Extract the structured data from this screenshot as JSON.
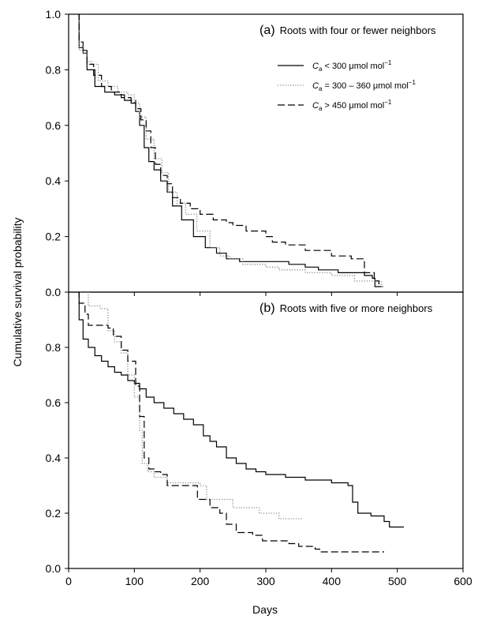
{
  "chart_data": {
    "type": "line",
    "xlabel": "Days",
    "ylabel": "Cumulative survival probability",
    "xlim": [
      0,
      600
    ],
    "ylim": [
      0,
      1.0
    ],
    "x_ticks": [
      "0",
      "100",
      "200",
      "300",
      "400",
      "500",
      "600"
    ],
    "y_ticks_top": [
      "0.0",
      "0.2",
      "0.4",
      "0.6",
      "0.8",
      "1.0"
    ],
    "y_ticks_bottom": [
      "0.0",
      "0.2",
      "0.4",
      "0.6",
      "0.8"
    ],
    "legend": {
      "placement": "top-right of panel (a)",
      "entries": [
        {
          "style": "solid",
          "prefix": "C",
          "sub": "a",
          "text": " < 300 μmol mol",
          "sup": "−1"
        },
        {
          "style": "dotted",
          "prefix": "C",
          "sub": "a",
          "text": " = 300 – 360 μmol mol",
          "sup": "−1"
        },
        {
          "style": "dashed",
          "prefix": "C",
          "sub": "a",
          "text": " > 450 μmol mol",
          "sup": "−1"
        }
      ]
    },
    "panels": [
      {
        "label": "(a)",
        "title": "Roots with four or fewer neighbors",
        "series": [
          {
            "style": "solid",
            "color": "#000000",
            "points": [
              [
                14,
                1.0
              ],
              [
                16,
                0.88
              ],
              [
                22,
                0.86
              ],
              [
                28,
                0.8
              ],
              [
                35,
                0.8
              ],
              [
                40,
                0.74
              ],
              [
                55,
                0.72
              ],
              [
                70,
                0.71
              ],
              [
                85,
                0.69
              ],
              [
                95,
                0.68
              ],
              [
                102,
                0.65
              ],
              [
                108,
                0.6
              ],
              [
                115,
                0.52
              ],
              [
                122,
                0.47
              ],
              [
                130,
                0.44
              ],
              [
                140,
                0.4
              ],
              [
                150,
                0.36
              ],
              [
                158,
                0.31
              ],
              [
                172,
                0.26
              ],
              [
                190,
                0.2
              ],
              [
                208,
                0.16
              ],
              [
                225,
                0.14
              ],
              [
                240,
                0.12
              ],
              [
                260,
                0.11
              ],
              [
                300,
                0.11
              ],
              [
                335,
                0.1
              ],
              [
                360,
                0.09
              ],
              [
                380,
                0.08
              ],
              [
                410,
                0.07
              ],
              [
                450,
                0.06
              ],
              [
                462,
                0.05
              ],
              [
                466,
                0.02
              ],
              [
                478,
                0.02
              ]
            ]
          },
          {
            "style": "dotted",
            "color": "#888888",
            "points": [
              [
                14,
                1.0
              ],
              [
                16,
                0.87
              ],
              [
                22,
                0.86
              ],
              [
                28,
                0.83
              ],
              [
                35,
                0.82
              ],
              [
                45,
                0.76
              ],
              [
                60,
                0.74
              ],
              [
                75,
                0.72
              ],
              [
                90,
                0.71
              ],
              [
                100,
                0.68
              ],
              [
                108,
                0.63
              ],
              [
                118,
                0.55
              ],
              [
                130,
                0.48
              ],
              [
                142,
                0.43
              ],
              [
                152,
                0.36
              ],
              [
                165,
                0.32
              ],
              [
                178,
                0.28
              ],
              [
                195,
                0.22
              ],
              [
                215,
                0.16
              ],
              [
                230,
                0.13
              ],
              [
                245,
                0.12
              ],
              [
                265,
                0.1
              ],
              [
                300,
                0.09
              ],
              [
                320,
                0.08
              ],
              [
                360,
                0.07
              ],
              [
                400,
                0.06
              ],
              [
                435,
                0.04
              ],
              [
                470,
                0.04
              ],
              [
                476,
                0.02
              ],
              [
                480,
                0.02
              ]
            ]
          },
          {
            "style": "dashed",
            "color": "#000000",
            "points": [
              [
                14,
                1.0
              ],
              [
                16,
                0.9
              ],
              [
                22,
                0.87
              ],
              [
                28,
                0.82
              ],
              [
                38,
                0.78
              ],
              [
                50,
                0.74
              ],
              [
                65,
                0.72
              ],
              [
                80,
                0.7
              ],
              [
                95,
                0.69
              ],
              [
                102,
                0.66
              ],
              [
                110,
                0.62
              ],
              [
                118,
                0.58
              ],
              [
                125,
                0.52
              ],
              [
                132,
                0.46
              ],
              [
                140,
                0.42
              ],
              [
                150,
                0.39
              ],
              [
                158,
                0.34
              ],
              [
                170,
                0.32
              ],
              [
                185,
                0.3
              ],
              [
                200,
                0.28
              ],
              [
                220,
                0.26
              ],
              [
                240,
                0.25
              ],
              [
                250,
                0.24
              ],
              [
                270,
                0.22
              ],
              [
                300,
                0.2
              ],
              [
                310,
                0.18
              ],
              [
                330,
                0.17
              ],
              [
                360,
                0.15
              ],
              [
                400,
                0.13
              ],
              [
                430,
                0.12
              ],
              [
                450,
                0.07
              ],
              [
                465,
                0.04
              ],
              [
                472,
                0.03
              ],
              [
                478,
                0.03
              ]
            ]
          }
        ]
      },
      {
        "label": "(b)",
        "title": "Roots with five or more neighbors",
        "series": [
          {
            "style": "solid",
            "color": "#000000",
            "points": [
              [
                14,
                1.0
              ],
              [
                16,
                0.9
              ],
              [
                22,
                0.83
              ],
              [
                30,
                0.8
              ],
              [
                40,
                0.77
              ],
              [
                50,
                0.75
              ],
              [
                60,
                0.73
              ],
              [
                70,
                0.71
              ],
              [
                80,
                0.7
              ],
              [
                90,
                0.68
              ],
              [
                100,
                0.67
              ],
              [
                108,
                0.65
              ],
              [
                118,
                0.62
              ],
              [
                130,
                0.6
              ],
              [
                145,
                0.58
              ],
              [
                160,
                0.56
              ],
              [
                175,
                0.54
              ],
              [
                190,
                0.52
              ],
              [
                205,
                0.48
              ],
              [
                215,
                0.46
              ],
              [
                225,
                0.44
              ],
              [
                240,
                0.4
              ],
              [
                255,
                0.38
              ],
              [
                270,
                0.36
              ],
              [
                285,
                0.35
              ],
              [
                300,
                0.34
              ],
              [
                330,
                0.33
              ],
              [
                360,
                0.32
              ],
              [
                400,
                0.31
              ],
              [
                425,
                0.3
              ],
              [
                432,
                0.24
              ],
              [
                440,
                0.2
              ],
              [
                460,
                0.19
              ],
              [
                480,
                0.17
              ],
              [
                488,
                0.15
              ],
              [
                510,
                0.15
              ]
            ]
          },
          {
            "style": "dotted",
            "color": "#888888",
            "points": [
              [
                14,
                1.0
              ],
              [
                20,
                1.0
              ],
              [
                30,
                0.95
              ],
              [
                48,
                0.94
              ],
              [
                60,
                0.86
              ],
              [
                70,
                0.82
              ],
              [
                80,
                0.78
              ],
              [
                90,
                0.7
              ],
              [
                100,
                0.62
              ],
              [
                108,
                0.5
              ],
              [
                112,
                0.38
              ],
              [
                120,
                0.35
              ],
              [
                130,
                0.33
              ],
              [
                150,
                0.31
              ],
              [
                200,
                0.3
              ],
              [
                210,
                0.25
              ],
              [
                250,
                0.22
              ],
              [
                290,
                0.2
              ],
              [
                300,
                0.2
              ],
              [
                320,
                0.18
              ],
              [
                355,
                0.18
              ]
            ]
          },
          {
            "style": "dashed",
            "color": "#000000",
            "points": [
              [
                14,
                1.0
              ],
              [
                16,
                0.96
              ],
              [
                25,
                0.92
              ],
              [
                30,
                0.88
              ],
              [
                50,
                0.88
              ],
              [
                60,
                0.87
              ],
              [
                68,
                0.84
              ],
              [
                80,
                0.79
              ],
              [
                90,
                0.75
              ],
              [
                102,
                0.66
              ],
              [
                108,
                0.55
              ],
              [
                115,
                0.4
              ],
              [
                122,
                0.36
              ],
              [
                130,
                0.35
              ],
              [
                140,
                0.34
              ],
              [
                150,
                0.3
              ],
              [
                190,
                0.3
              ],
              [
                196,
                0.25
              ],
              [
                215,
                0.22
              ],
              [
                230,
                0.2
              ],
              [
                240,
                0.16
              ],
              [
                255,
                0.13
              ],
              [
                280,
                0.12
              ],
              [
                295,
                0.1
              ],
              [
                335,
                0.09
              ],
              [
                350,
                0.08
              ],
              [
                375,
                0.07
              ],
              [
                382,
                0.06
              ],
              [
                480,
                0.06
              ]
            ]
          }
        ]
      }
    ]
  }
}
